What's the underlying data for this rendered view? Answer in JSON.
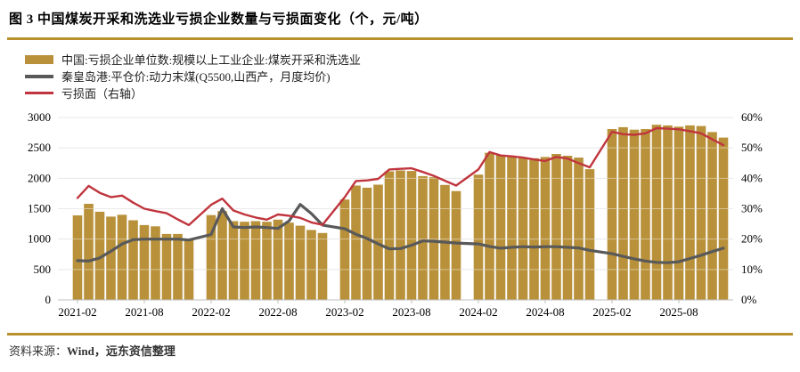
{
  "title": "图 3  中国煤炭开采和洗选业亏损企业数量与亏损面变化（个，元/吨）",
  "colors": {
    "bar": "#B8913A",
    "price_line": "#595959",
    "loss_line": "#C0353D",
    "gold_rule": "#B8912E",
    "grid": "#D9D9D9",
    "axis": "#BFBFBF",
    "axis_text": "#000000"
  },
  "legend": {
    "items": [
      {
        "label": "中国:亏损企业单位数:规模以上工业企业:煤炭开采和洗选业",
        "marker": "bar-swatch"
      },
      {
        "label": "秦皇岛港:平仓价:动力末煤(Q5500,山西产，月度均价)",
        "marker": "gray-line-swatch"
      },
      {
        "label": "亏损面（右轴）",
        "marker": "red-line-swatch"
      }
    ]
  },
  "footer": {
    "source_label": "资料来源：",
    "source_text": "Wind，远东资信整理"
  },
  "chart_data": {
    "type": "bar",
    "x_monthly_skip_january": true,
    "x": [
      "2021-02",
      "2021-03",
      "2021-04",
      "2021-05",
      "2021-06",
      "2021-07",
      "2021-08",
      "2021-09",
      "2021-10",
      "2021-11",
      "2021-12",
      "2022-02",
      "2022-03",
      "2022-04",
      "2022-05",
      "2022-06",
      "2022-07",
      "2022-08",
      "2022-09",
      "2022-10",
      "2022-11",
      "2022-12",
      "2023-02",
      "2023-03",
      "2023-04",
      "2023-05",
      "2023-06",
      "2023-07",
      "2023-08",
      "2023-09",
      "2023-10",
      "2023-11",
      "2023-12",
      "2024-02",
      "2024-03",
      "2024-04",
      "2024-05",
      "2024-06",
      "2024-07",
      "2024-08",
      "2024-09",
      "2024-10",
      "2024-11",
      "2024-12",
      "2025-02",
      "2025-03",
      "2025-04",
      "2025-05",
      "2025-06",
      "2025-07",
      "2025-08",
      "2025-09",
      "2025-10",
      "2025-11",
      "2025-12"
    ],
    "x_tick_labels": [
      "2021-02",
      "2021-08",
      "2022-02",
      "2022-08",
      "2023-02",
      "2023-08",
      "2024-02",
      "2024-08",
      "2025-02",
      "2025-08"
    ],
    "left_axis": {
      "label": "个 / 元/吨",
      "min": 0,
      "max": 3000,
      "step": 500,
      "ticks": [
        "0",
        "500",
        "1000",
        "1500",
        "2000",
        "2500",
        "3000"
      ]
    },
    "right_axis": {
      "label": "亏损面",
      "min": 0,
      "max": 60,
      "step": 10,
      "ticks": [
        "0%",
        "10%",
        "20%",
        "30%",
        "40%",
        "50%",
        "60%"
      ]
    },
    "grid": true,
    "legend_position": "top-left",
    "series": [
      {
        "name": "中国:亏损企业单位数:规模以上工业企业:煤炭开采和洗选业",
        "type": "bar",
        "axis": "left",
        "values": [
          1390,
          1580,
          1450,
          1370,
          1400,
          1310,
          1230,
          1210,
          1085,
          1085,
          980,
          1395,
          1460,
          1295,
          1285,
          1295,
          1285,
          1320,
          1270,
          1220,
          1150,
          1100,
          1650,
          1880,
          1845,
          1895,
          2115,
          2130,
          2120,
          2035,
          2020,
          1890,
          1790,
          2060,
          2420,
          2380,
          2350,
          2340,
          2330,
          2350,
          2400,
          2370,
          2340,
          2150,
          2810,
          2840,
          2800,
          2810,
          2880,
          2870,
          2850,
          2870,
          2860,
          2760,
          2670
        ]
      },
      {
        "name": "秦皇岛港:平仓价:动力末煤(Q5500,山西产，月度均价)",
        "type": "line",
        "axis": "left",
        "values": [
          645,
          640,
          690,
          800,
          920,
          990,
          1000,
          1000,
          1000,
          1000,
          985,
          1075,
          1500,
          1200,
          1190,
          1200,
          1190,
          1175,
          1300,
          1570,
          1420,
          1230,
          1170,
          1080,
          1010,
          920,
          840,
          845,
          900,
          970,
          965,
          950,
          935,
          920,
          880,
          850,
          865,
          875,
          870,
          875,
          875,
          865,
          855,
          815,
          760,
          715,
          675,
          640,
          618,
          612,
          628,
          680,
          735,
          795,
          850
        ]
      },
      {
        "name": "亏损面（右轴）",
        "type": "line",
        "axis": "right",
        "values": [
          33.5,
          37.5,
          35.2,
          33.8,
          34.3,
          32.0,
          30.0,
          29.2,
          28.5,
          26.5,
          24.6,
          31.3,
          33.3,
          29.4,
          28.1,
          27.1,
          26.4,
          28.1,
          27.7,
          27.0,
          25.5,
          24.7,
          33.8,
          39.1,
          39.3,
          39.8,
          42.9,
          43.1,
          43.3,
          42.1,
          40.8,
          39.2,
          37.6,
          42.9,
          48.6,
          47.5,
          47.2,
          46.8,
          46.2,
          45.7,
          47.0,
          46.5,
          45.0,
          43.6,
          55.3,
          54.5,
          54.3,
          54.8,
          56.5,
          56.3,
          56.1,
          55.5,
          54.8,
          52.8,
          50.9
        ]
      }
    ]
  }
}
